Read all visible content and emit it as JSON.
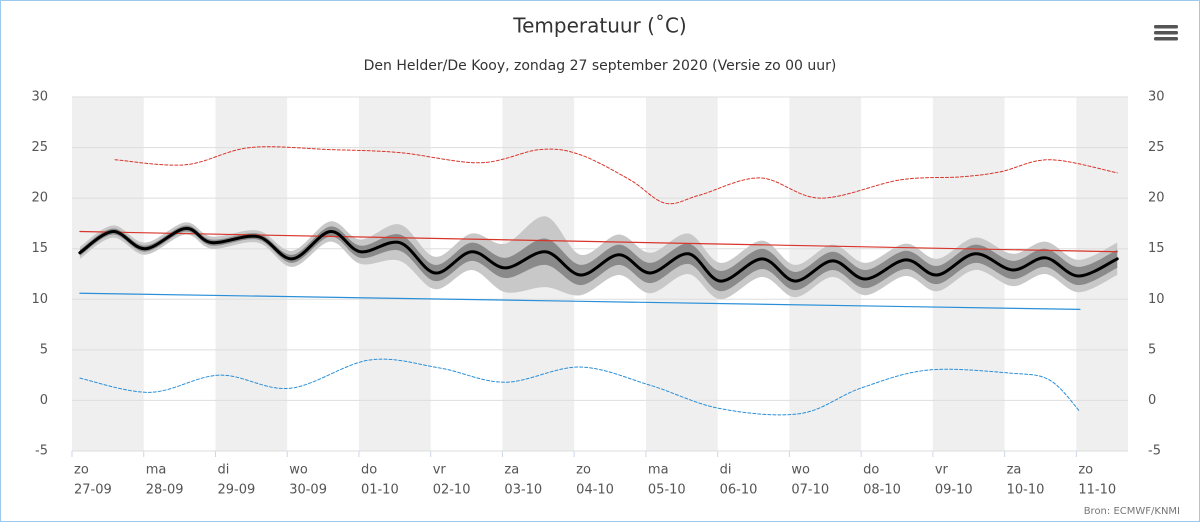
{
  "chart_data": {
    "type": "line",
    "title": "Temperatuur (˚C)",
    "subtitle": "Den Helder/De Kooy, zondag 27 september 2020 (Versie zo 00 uur)",
    "source": "Bron: ECMWF/KNMI",
    "xlim": [
      0,
      14.72
    ],
    "xticks": [
      {
        "value": 0,
        "label": "zo"
      },
      {
        "value": 1,
        "label": "ma"
      },
      {
        "value": 2,
        "label": "di"
      },
      {
        "value": 3,
        "label": "wo"
      },
      {
        "value": 4,
        "label": "do"
      },
      {
        "value": 5,
        "label": "vr"
      },
      {
        "value": 6,
        "label": "za"
      },
      {
        "value": 7,
        "label": "zo"
      },
      {
        "value": 8,
        "label": "ma"
      },
      {
        "value": 9,
        "label": "di"
      },
      {
        "value": 10,
        "label": "wo"
      },
      {
        "value": 11,
        "label": "do"
      },
      {
        "value": 12,
        "label": "vr"
      },
      {
        "value": 13,
        "label": "za"
      },
      {
        "value": 14,
        "label": "zo"
      }
    ],
    "xtick_dates": [
      "27-09",
      "28-09",
      "29-09",
      "30-09",
      "01-10",
      "02-10",
      "03-10",
      "04-10",
      "05-10",
      "06-10",
      "07-10",
      "08-10",
      "09-10",
      "10-10",
      "11-10"
    ],
    "ylim": [
      -5,
      30
    ],
    "yticks": [
      -5,
      0,
      5,
      10,
      15,
      20,
      25,
      30
    ],
    "grid": true,
    "bands": [
      {
        "color": "#c8c8c8",
        "x": [
          0.11,
          0.57,
          1.02,
          1.58,
          1.95,
          2.59,
          3.07,
          3.6,
          4.02,
          4.57,
          5.06,
          5.57,
          6.04,
          6.6,
          7.09,
          7.62,
          8.06,
          8.59,
          9.04,
          9.62,
          10.08,
          10.6,
          11.06,
          11.62,
          12.06,
          12.59,
          13.11,
          13.57,
          14.03,
          14.57
        ],
        "low": [
          14.0,
          16.1,
          14.4,
          16.4,
          15.0,
          15.6,
          13.2,
          15.7,
          13.5,
          13.8,
          11.0,
          12.9,
          10.7,
          11.2,
          10.4,
          12.4,
          10.6,
          12.5,
          10.0,
          12.2,
          10.2,
          12.2,
          10.4,
          12.3,
          10.8,
          12.9,
          11.3,
          12.5,
          10.7,
          12.4
        ],
        "high": [
          15.2,
          17.3,
          15.6,
          17.6,
          16.2,
          16.8,
          14.8,
          17.7,
          15.9,
          17.4,
          14.2,
          16.5,
          15.5,
          18.2,
          14.4,
          16.4,
          14.6,
          16.5,
          13.6,
          15.8,
          13.4,
          15.4,
          13.6,
          15.5,
          14.0,
          16.1,
          14.5,
          15.7,
          13.9,
          15.6
        ]
      },
      {
        "color": "#8a8a8a",
        "x": [
          0.11,
          0.57,
          1.02,
          1.58,
          1.95,
          2.59,
          3.07,
          3.6,
          4.02,
          4.57,
          5.06,
          5.57,
          6.04,
          6.6,
          7.09,
          7.62,
          8.06,
          8.59,
          9.04,
          9.62,
          10.08,
          10.6,
          11.06,
          11.62,
          12.06,
          12.59,
          13.11,
          13.57,
          14.03,
          14.57
        ],
        "low": [
          14.3,
          16.4,
          14.7,
          16.7,
          15.3,
          15.9,
          13.6,
          16.2,
          14.1,
          14.8,
          11.8,
          13.8,
          12.1,
          13.4,
          11.4,
          13.4,
          11.6,
          13.5,
          10.8,
          13.0,
          10.9,
          12.9,
          11.1,
          13.0,
          11.5,
          13.6,
          12.0,
          13.2,
          11.4,
          13.1
        ],
        "high": [
          14.9,
          17.0,
          15.3,
          17.3,
          15.9,
          16.5,
          14.4,
          17.2,
          15.3,
          16.4,
          13.4,
          15.6,
          14.1,
          16.0,
          13.4,
          15.4,
          13.6,
          15.5,
          12.8,
          15.0,
          12.7,
          14.7,
          12.9,
          14.8,
          13.3,
          15.4,
          13.8,
          15.0,
          13.2,
          14.9
        ]
      }
    ],
    "series": [
      {
        "color": "#d8352a",
        "width": 1,
        "dashed": true,
        "x": [
          0.6,
          1.58,
          2.48,
          3.6,
          4.57,
          5.69,
          6.52,
          7.08,
          7.78,
          8.27,
          8.75,
          9.59,
          10.43,
          11.54,
          12.38,
          12.94,
          13.63,
          14.57
        ],
        "values": [
          23.8,
          23.3,
          25.0,
          24.8,
          24.5,
          23.5,
          24.8,
          24.3,
          21.8,
          19.5,
          20.3,
          22.0,
          20.0,
          21.8,
          22.1,
          22.6,
          23.8,
          22.5
        ]
      },
      {
        "color": "#2a8fd8",
        "width": 1,
        "dashed": true,
        "x": [
          0.11,
          1.09,
          2.06,
          3.04,
          4.15,
          5.13,
          6.04,
          7.08,
          8.06,
          9.03,
          10.15,
          10.99,
          11.93,
          13.08,
          13.63,
          14.05
        ],
        "values": [
          2.2,
          0.8,
          2.5,
          1.2,
          4.0,
          3.2,
          1.8,
          3.3,
          1.5,
          -0.8,
          -1.3,
          1.2,
          3.0,
          2.7,
          2.0,
          -1.1
        ]
      },
      {
        "color": "#d8352a",
        "width": 1.2,
        "dashed": false,
        "x": [
          0.11,
          14.57
        ],
        "values": [
          16.7,
          14.7
        ]
      },
      {
        "color": "#2a8fd8",
        "width": 1.2,
        "dashed": false,
        "x": [
          0.11,
          14.05
        ],
        "values": [
          10.6,
          9.0
        ]
      },
      {
        "color": "#000000",
        "width": 3,
        "dashed": false,
        "x": [
          0.11,
          0.57,
          1.02,
          1.58,
          1.95,
          2.59,
          3.07,
          3.6,
          4.02,
          4.57,
          5.06,
          5.57,
          6.04,
          6.6,
          7.09,
          7.62,
          8.06,
          8.59,
          9.04,
          9.62,
          10.08,
          10.6,
          11.06,
          11.62,
          12.06,
          12.59,
          13.11,
          13.57,
          14.03,
          14.57
        ],
        "values": [
          14.6,
          16.7,
          15.0,
          17.0,
          15.6,
          16.2,
          14.0,
          16.7,
          14.7,
          15.6,
          12.6,
          14.7,
          13.1,
          14.7,
          12.4,
          14.4,
          12.6,
          14.5,
          11.8,
          14.0,
          11.8,
          13.8,
          12.0,
          13.9,
          12.4,
          14.5,
          12.9,
          14.1,
          12.3,
          14.0
        ]
      }
    ]
  }
}
